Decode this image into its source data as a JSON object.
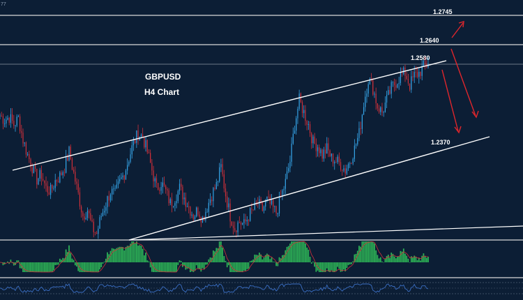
{
  "chart_data": {
    "type": "candlestick",
    "title": "GBPUSD",
    "subtitle": "H4 Chart",
    "top_left_text": "77",
    "levels": [
      {
        "label": "1.2745",
        "value": 1.2745
      },
      {
        "label": "1.2640",
        "value": 1.264
      },
      {
        "label": "1.2580",
        "value": 1.258
      },
      {
        "label": "1.2370",
        "value": 1.237
      }
    ],
    "price_path": [
      1.241,
      1.2395,
      1.2405,
      1.238,
      1.24,
      1.233,
      1.228,
      1.224,
      1.22,
      1.2215,
      1.217,
      1.216,
      1.2195,
      1.221,
      1.224,
      1.229,
      1.222,
      1.215,
      1.208,
      1.21,
      1.204,
      1.202,
      1.208,
      1.212,
      1.216,
      1.215,
      1.219,
      1.222,
      1.227,
      1.232,
      1.235,
      1.234,
      1.229,
      1.223,
      1.217,
      1.219,
      1.216,
      1.212,
      1.214,
      1.217,
      1.214,
      1.211,
      1.208,
      1.21,
      1.207,
      1.211,
      1.215,
      1.218,
      1.224,
      1.215,
      1.208,
      1.204,
      1.206,
      1.205,
      1.208,
      1.21,
      1.212,
      1.21,
      1.213,
      1.211,
      1.209,
      1.214,
      1.219,
      1.226,
      1.238,
      1.246,
      1.242,
      1.238,
      1.232,
      1.231,
      1.228,
      1.23,
      1.227,
      1.226,
      1.225,
      1.223,
      1.226,
      1.23,
      1.235,
      1.245,
      1.253,
      1.25,
      1.244,
      1.242,
      1.246,
      1.25,
      1.252,
      1.254,
      1.255,
      1.251,
      1.254,
      1.255,
      1.257,
      1.258
    ],
    "price_ylim": [
      1.2,
      1.279
    ],
    "macd_histogram": {
      "min": -1,
      "max": 1
    },
    "indicator_panels": [
      "histogram",
      "oscillator"
    ],
    "projections": [
      "up toward 1.2745",
      "down toward 1.2370"
    ],
    "colors": {
      "background": "#0c1e35",
      "bull": "#35a3e6",
      "bear": "#d0303a",
      "grid": "#ffffff",
      "histogram": "#2db356",
      "arrow": "#e0262c",
      "signal_line": "#d0303a",
      "oscillator": "#3b6fc4"
    }
  }
}
